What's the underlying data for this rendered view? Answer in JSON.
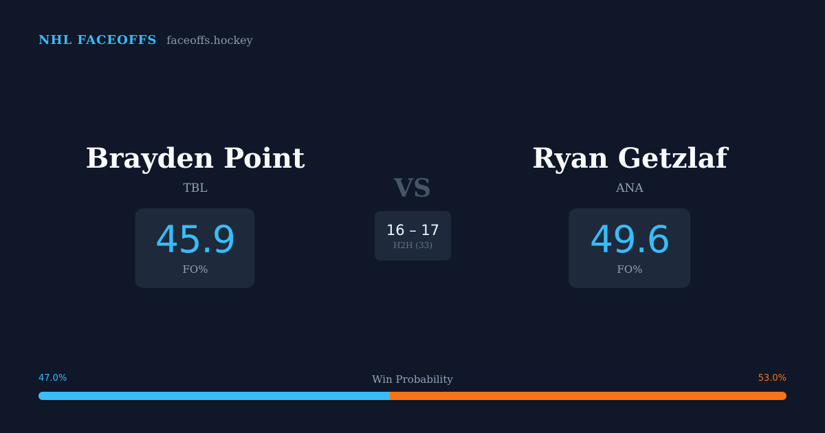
{
  "brand": {
    "title": "NHL FACEOFFS",
    "site": "faceoffs.hockey"
  },
  "players": {
    "left": {
      "name": "Brayden Point",
      "team": "TBL",
      "stat_value": "45.9",
      "stat_label": "FO%"
    },
    "right": {
      "name": "Ryan Getzlaf",
      "team": "ANA",
      "stat_value": "49.6",
      "stat_label": "FO%"
    }
  },
  "versus": {
    "label": "VS",
    "h2h_score": "16 – 17",
    "h2h_label": "H2H (33)"
  },
  "win_probability": {
    "title": "Win Probability",
    "left_label": "47.0%",
    "right_label": "53.0%",
    "left_fraction": 0.47,
    "left_color": "#38bdf8",
    "right_color": "#f97316"
  },
  "colors": {
    "background": "#0f1729",
    "card": "#1e293b",
    "accent": "#38bdf8",
    "accent_secondary": "#f97316"
  }
}
